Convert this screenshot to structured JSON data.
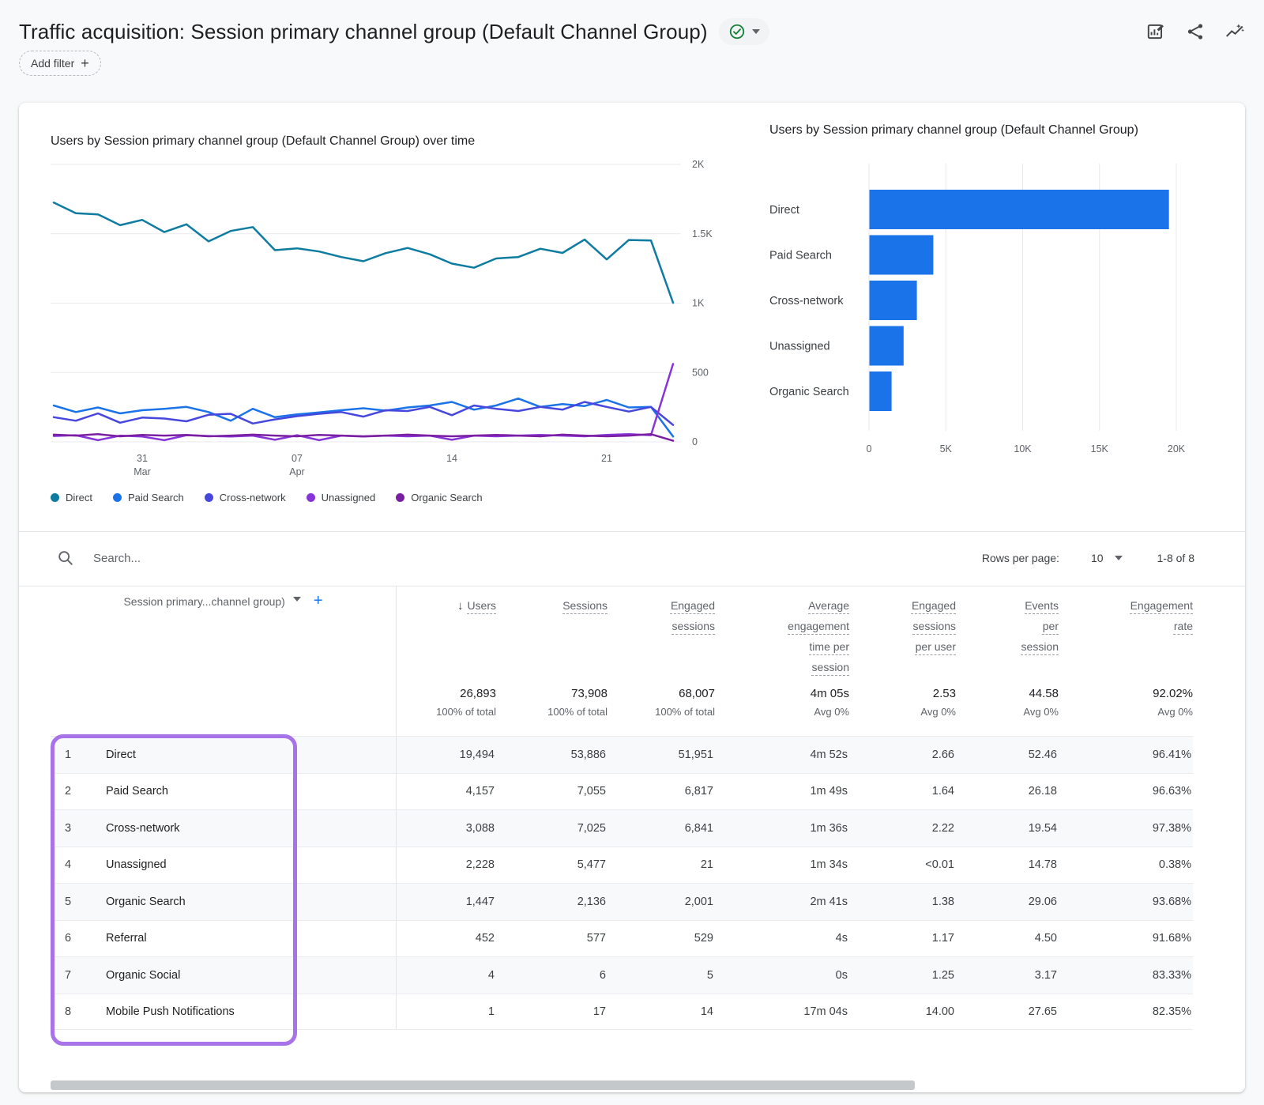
{
  "header": {
    "title": "Traffic acquisition: Session primary channel group (Default Channel Group)",
    "status_badge": "valid-check",
    "add_filter_label": "Add filter",
    "accent_color": "#1a73e8",
    "check_color": "#188038"
  },
  "chart_data": [
    {
      "type": "line",
      "title": "Users by Session primary channel group (Default Channel Group) over time",
      "ylim": [
        0,
        2000
      ],
      "y_ticks": [
        {
          "value": 2000,
          "label": "2K"
        },
        {
          "value": 1500,
          "label": "1.5K"
        },
        {
          "value": 1000,
          "label": "1K"
        },
        {
          "value": 500,
          "label": "500"
        },
        {
          "value": 0,
          "label": "0"
        }
      ],
      "x_tick_labels": [
        {
          "index": 4,
          "line1": "31",
          "line2": "Mar"
        },
        {
          "index": 11,
          "line1": "07",
          "line2": "Apr"
        },
        {
          "index": 18,
          "line1": "14"
        },
        {
          "index": 25,
          "line1": "21"
        }
      ],
      "grid": "horizontal",
      "legend_position": "bottom",
      "series": [
        {
          "name": "Direct",
          "color": "#0e7ca0",
          "values": [
            1725,
            1648,
            1640,
            1562,
            1600,
            1512,
            1568,
            1445,
            1520,
            1548,
            1382,
            1395,
            1372,
            1332,
            1302,
            1360,
            1398,
            1352,
            1285,
            1255,
            1322,
            1332,
            1392,
            1362,
            1458,
            1315,
            1455,
            1452,
            1002
          ]
        },
        {
          "name": "Paid Search",
          "color": "#1a73e8",
          "values": [
            262,
            215,
            248,
            205,
            228,
            238,
            252,
            215,
            152,
            238,
            178,
            198,
            212,
            228,
            242,
            225,
            248,
            262,
            288,
            232,
            262,
            312,
            252,
            272,
            258,
            302,
            248,
            252,
            38
          ]
        },
        {
          "name": "Cross-network",
          "color": "#4747dd",
          "values": [
            178,
            152,
            205,
            138,
            175,
            168,
            148,
            195,
            202,
            132,
            162,
            185,
            202,
            215,
            182,
            228,
            222,
            252,
            192,
            262,
            238,
            222,
            252,
            232,
            288,
            252,
            218,
            252,
            122
          ]
        },
        {
          "name": "Unassigned",
          "color": "#8735d8",
          "values": [
            42,
            48,
            12,
            45,
            38,
            12,
            48,
            42,
            38,
            45,
            15,
            48,
            12,
            45,
            38,
            45,
            40,
            45,
            15,
            45,
            40,
            45,
            50,
            45,
            40,
            50,
            55,
            48,
            562
          ]
        },
        {
          "name": "Organic Search",
          "color": "#7b1fa2",
          "values": [
            52,
            45,
            55,
            40,
            50,
            45,
            50,
            40,
            45,
            52,
            45,
            40,
            50,
            45,
            40,
            45,
            52,
            45,
            40,
            45,
            50,
            45,
            40,
            52,
            45,
            40,
            45,
            55,
            8
          ]
        }
      ]
    },
    {
      "type": "bar",
      "orientation": "horizontal",
      "title": "Users by Session primary channel group (Default Channel Group)",
      "categories": [
        "Direct",
        "Paid Search",
        "Cross-network",
        "Unassigned",
        "Organic Search"
      ],
      "values": [
        19494,
        4157,
        3088,
        2228,
        1447
      ],
      "bar_color": "#1a73e8",
      "xlim": [
        0,
        20000
      ],
      "x_ticks": [
        {
          "value": 0,
          "label": "0"
        },
        {
          "value": 5000,
          "label": "5K"
        },
        {
          "value": 10000,
          "label": "10K"
        },
        {
          "value": 15000,
          "label": "15K"
        },
        {
          "value": 20000,
          "label": "20K"
        }
      ],
      "grid": "vertical"
    }
  ],
  "table": {
    "search_placeholder": "Search...",
    "rows_per_page_label": "Rows per page:",
    "rows_per_page_value": "10",
    "pagination": "1-8 of 8",
    "dimension_header": "Session primary...channel group)",
    "columns": [
      "Users",
      "Sessions",
      "Engaged sessions",
      "Average engagement time per session",
      "Engaged sessions per user",
      "Events per session",
      "Engagement rate"
    ],
    "totals": {
      "values": [
        "26,893",
        "73,908",
        "68,007",
        "4m 05s",
        "2.53",
        "44.58",
        "92.02%"
      ],
      "subs": [
        "100% of total",
        "100% of total",
        "100% of total",
        "Avg 0%",
        "Avg 0%",
        "Avg 0%",
        "Avg 0%"
      ]
    },
    "rows": [
      {
        "rank": "1",
        "channel": "Direct",
        "values": [
          "19,494",
          "53,886",
          "51,951",
          "4m 52s",
          "2.66",
          "52.46",
          "96.41%"
        ]
      },
      {
        "rank": "2",
        "channel": "Paid Search",
        "values": [
          "4,157",
          "7,055",
          "6,817",
          "1m 49s",
          "1.64",
          "26.18",
          "96.63%"
        ]
      },
      {
        "rank": "3",
        "channel": "Cross-network",
        "values": [
          "3,088",
          "7,025",
          "6,841",
          "1m 36s",
          "2.22",
          "19.54",
          "97.38%"
        ]
      },
      {
        "rank": "4",
        "channel": "Unassigned",
        "values": [
          "2,228",
          "5,477",
          "21",
          "1m 34s",
          "<0.01",
          "14.78",
          "0.38%"
        ]
      },
      {
        "rank": "5",
        "channel": "Organic Search",
        "values": [
          "1,447",
          "2,136",
          "2,001",
          "2m 41s",
          "1.38",
          "29.06",
          "93.68%"
        ]
      },
      {
        "rank": "6",
        "channel": "Referral",
        "values": [
          "452",
          "577",
          "529",
          "4s",
          "1.17",
          "4.50",
          "91.68%"
        ]
      },
      {
        "rank": "7",
        "channel": "Organic Social",
        "values": [
          "4",
          "6",
          "5",
          "0s",
          "1.25",
          "3.17",
          "83.33%"
        ]
      },
      {
        "rank": "8",
        "channel": "Mobile Push Notifications",
        "values": [
          "1",
          "17",
          "14",
          "17m 04s",
          "14.00",
          "27.65",
          "82.35%"
        ]
      }
    ]
  },
  "annotation": {
    "highlight_color": "#a873e8"
  }
}
